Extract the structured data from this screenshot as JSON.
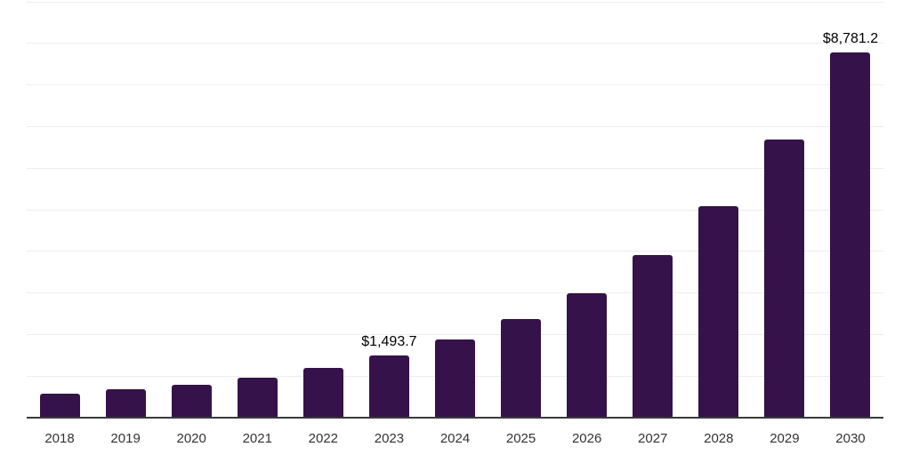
{
  "chart_data": {
    "type": "bar",
    "title": "",
    "xlabel": "",
    "ylabel": "",
    "categories": [
      "2018",
      "2019",
      "2020",
      "2021",
      "2022",
      "2023",
      "2024",
      "2025",
      "2026",
      "2027",
      "2028",
      "2029",
      "2030"
    ],
    "values": [
      580,
      675,
      790,
      960,
      1205,
      1493.7,
      1870,
      2370,
      3000,
      3920,
      5080,
      6680,
      8781.2
    ],
    "value_labels": [
      "",
      "",
      "",
      "",
      "",
      "$1,493.7",
      "",
      "",
      "",
      "",
      "",
      "",
      "$8,781.2"
    ],
    "ylim": [
      0,
      10000
    ],
    "gridline_step": 1000,
    "grid": true,
    "legend_position": "none",
    "colors": {
      "bar": "#36124B",
      "gridline": "#ececec",
      "axis_line": "#3a3a3a",
      "tick_label": "#333333",
      "value_label": "#000000",
      "background": "#ffffff"
    }
  }
}
